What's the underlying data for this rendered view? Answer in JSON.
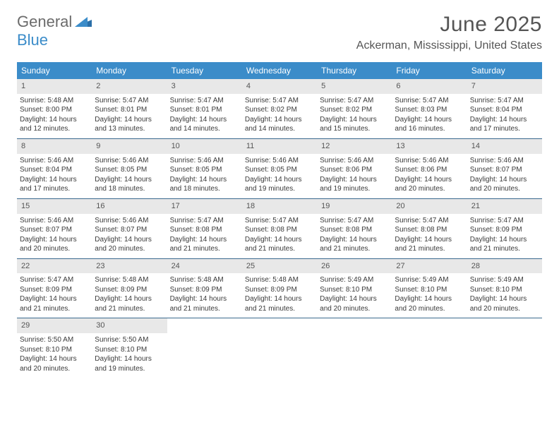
{
  "logo": {
    "word1": "General",
    "word2": "Blue"
  },
  "title": "June 2025",
  "location": "Ackerman, Mississippi, United States",
  "colors": {
    "header_bg": "#3b8cc9",
    "header_text": "#ffffff",
    "daynum_bg": "#e8e8e8",
    "text": "#3a3a3a",
    "divider": "#3b6a8f",
    "page_bg": "#ffffff",
    "title_text": "#555555",
    "logo_blue": "#3b8cc9",
    "logo_gray": "#6b6b6b"
  },
  "day_headers": [
    "Sunday",
    "Monday",
    "Tuesday",
    "Wednesday",
    "Thursday",
    "Friday",
    "Saturday"
  ],
  "weeks": [
    [
      {
        "num": "1",
        "sunrise": "Sunrise: 5:48 AM",
        "sunset": "Sunset: 8:00 PM",
        "day1": "Daylight: 14 hours",
        "day2": "and 12 minutes."
      },
      {
        "num": "2",
        "sunrise": "Sunrise: 5:47 AM",
        "sunset": "Sunset: 8:01 PM",
        "day1": "Daylight: 14 hours",
        "day2": "and 13 minutes."
      },
      {
        "num": "3",
        "sunrise": "Sunrise: 5:47 AM",
        "sunset": "Sunset: 8:01 PM",
        "day1": "Daylight: 14 hours",
        "day2": "and 14 minutes."
      },
      {
        "num": "4",
        "sunrise": "Sunrise: 5:47 AM",
        "sunset": "Sunset: 8:02 PM",
        "day1": "Daylight: 14 hours",
        "day2": "and 14 minutes."
      },
      {
        "num": "5",
        "sunrise": "Sunrise: 5:47 AM",
        "sunset": "Sunset: 8:02 PM",
        "day1": "Daylight: 14 hours",
        "day2": "and 15 minutes."
      },
      {
        "num": "6",
        "sunrise": "Sunrise: 5:47 AM",
        "sunset": "Sunset: 8:03 PM",
        "day1": "Daylight: 14 hours",
        "day2": "and 16 minutes."
      },
      {
        "num": "7",
        "sunrise": "Sunrise: 5:47 AM",
        "sunset": "Sunset: 8:04 PM",
        "day1": "Daylight: 14 hours",
        "day2": "and 17 minutes."
      }
    ],
    [
      {
        "num": "8",
        "sunrise": "Sunrise: 5:46 AM",
        "sunset": "Sunset: 8:04 PM",
        "day1": "Daylight: 14 hours",
        "day2": "and 17 minutes."
      },
      {
        "num": "9",
        "sunrise": "Sunrise: 5:46 AM",
        "sunset": "Sunset: 8:05 PM",
        "day1": "Daylight: 14 hours",
        "day2": "and 18 minutes."
      },
      {
        "num": "10",
        "sunrise": "Sunrise: 5:46 AM",
        "sunset": "Sunset: 8:05 PM",
        "day1": "Daylight: 14 hours",
        "day2": "and 18 minutes."
      },
      {
        "num": "11",
        "sunrise": "Sunrise: 5:46 AM",
        "sunset": "Sunset: 8:05 PM",
        "day1": "Daylight: 14 hours",
        "day2": "and 19 minutes."
      },
      {
        "num": "12",
        "sunrise": "Sunrise: 5:46 AM",
        "sunset": "Sunset: 8:06 PM",
        "day1": "Daylight: 14 hours",
        "day2": "and 19 minutes."
      },
      {
        "num": "13",
        "sunrise": "Sunrise: 5:46 AM",
        "sunset": "Sunset: 8:06 PM",
        "day1": "Daylight: 14 hours",
        "day2": "and 20 minutes."
      },
      {
        "num": "14",
        "sunrise": "Sunrise: 5:46 AM",
        "sunset": "Sunset: 8:07 PM",
        "day1": "Daylight: 14 hours",
        "day2": "and 20 minutes."
      }
    ],
    [
      {
        "num": "15",
        "sunrise": "Sunrise: 5:46 AM",
        "sunset": "Sunset: 8:07 PM",
        "day1": "Daylight: 14 hours",
        "day2": "and 20 minutes."
      },
      {
        "num": "16",
        "sunrise": "Sunrise: 5:46 AM",
        "sunset": "Sunset: 8:07 PM",
        "day1": "Daylight: 14 hours",
        "day2": "and 20 minutes."
      },
      {
        "num": "17",
        "sunrise": "Sunrise: 5:47 AM",
        "sunset": "Sunset: 8:08 PM",
        "day1": "Daylight: 14 hours",
        "day2": "and 21 minutes."
      },
      {
        "num": "18",
        "sunrise": "Sunrise: 5:47 AM",
        "sunset": "Sunset: 8:08 PM",
        "day1": "Daylight: 14 hours",
        "day2": "and 21 minutes."
      },
      {
        "num": "19",
        "sunrise": "Sunrise: 5:47 AM",
        "sunset": "Sunset: 8:08 PM",
        "day1": "Daylight: 14 hours",
        "day2": "and 21 minutes."
      },
      {
        "num": "20",
        "sunrise": "Sunrise: 5:47 AM",
        "sunset": "Sunset: 8:08 PM",
        "day1": "Daylight: 14 hours",
        "day2": "and 21 minutes."
      },
      {
        "num": "21",
        "sunrise": "Sunrise: 5:47 AM",
        "sunset": "Sunset: 8:09 PM",
        "day1": "Daylight: 14 hours",
        "day2": "and 21 minutes."
      }
    ],
    [
      {
        "num": "22",
        "sunrise": "Sunrise: 5:47 AM",
        "sunset": "Sunset: 8:09 PM",
        "day1": "Daylight: 14 hours",
        "day2": "and 21 minutes."
      },
      {
        "num": "23",
        "sunrise": "Sunrise: 5:48 AM",
        "sunset": "Sunset: 8:09 PM",
        "day1": "Daylight: 14 hours",
        "day2": "and 21 minutes."
      },
      {
        "num": "24",
        "sunrise": "Sunrise: 5:48 AM",
        "sunset": "Sunset: 8:09 PM",
        "day1": "Daylight: 14 hours",
        "day2": "and 21 minutes."
      },
      {
        "num": "25",
        "sunrise": "Sunrise: 5:48 AM",
        "sunset": "Sunset: 8:09 PM",
        "day1": "Daylight: 14 hours",
        "day2": "and 21 minutes."
      },
      {
        "num": "26",
        "sunrise": "Sunrise: 5:49 AM",
        "sunset": "Sunset: 8:10 PM",
        "day1": "Daylight: 14 hours",
        "day2": "and 20 minutes."
      },
      {
        "num": "27",
        "sunrise": "Sunrise: 5:49 AM",
        "sunset": "Sunset: 8:10 PM",
        "day1": "Daylight: 14 hours",
        "day2": "and 20 minutes."
      },
      {
        "num": "28",
        "sunrise": "Sunrise: 5:49 AM",
        "sunset": "Sunset: 8:10 PM",
        "day1": "Daylight: 14 hours",
        "day2": "and 20 minutes."
      }
    ],
    [
      {
        "num": "29",
        "sunrise": "Sunrise: 5:50 AM",
        "sunset": "Sunset: 8:10 PM",
        "day1": "Daylight: 14 hours",
        "day2": "and 20 minutes."
      },
      {
        "num": "30",
        "sunrise": "Sunrise: 5:50 AM",
        "sunset": "Sunset: 8:10 PM",
        "day1": "Daylight: 14 hours",
        "day2": "and 19 minutes."
      },
      null,
      null,
      null,
      null,
      null
    ]
  ]
}
